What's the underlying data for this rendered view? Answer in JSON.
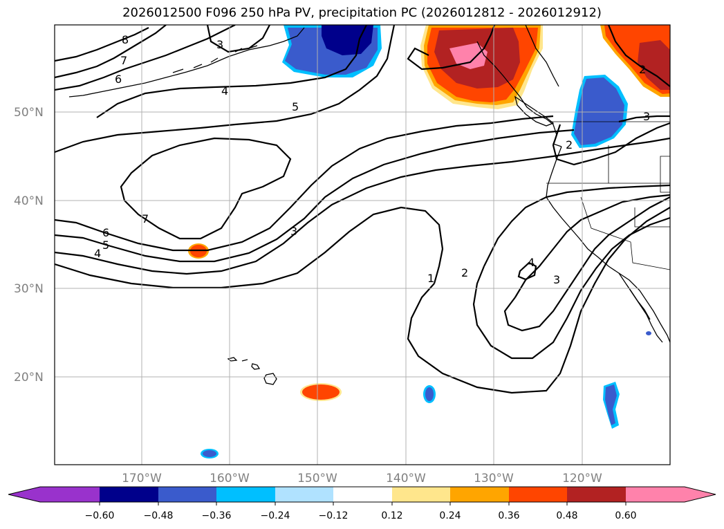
{
  "title": "2026012500 F096 250 hPa PV, precipitation PC (2026012812 - 2026012912)",
  "map": {
    "lat_labels": [
      "50°N",
      "40°N",
      "30°N",
      "20°N"
    ],
    "lon_labels": [
      "170°W",
      "160°W",
      "150°W",
      "140°W",
      "130°W",
      "120°W"
    ],
    "contour_labels": [
      "8",
      "7",
      "6",
      "4",
      "5",
      "3",
      "7",
      "6",
      "5",
      "4",
      "3",
      "1",
      "2",
      "4",
      "3",
      "2",
      "3",
      "2"
    ]
  },
  "colorbar": {
    "ticks": [
      "−0.60",
      "−0.48",
      "−0.36",
      "−0.24",
      "−0.12",
      "0.12",
      "0.24",
      "0.36",
      "0.48",
      "0.60"
    ],
    "colors": [
      "#9932cc",
      "#00008b",
      "#3a5bcc",
      "#00bfff",
      "#b0e2ff",
      "#ffffff",
      "#ffe68c",
      "#ffa500",
      "#ff4500",
      "#b22222",
      "#ff82ab",
      "#ff82ab"
    ]
  }
}
